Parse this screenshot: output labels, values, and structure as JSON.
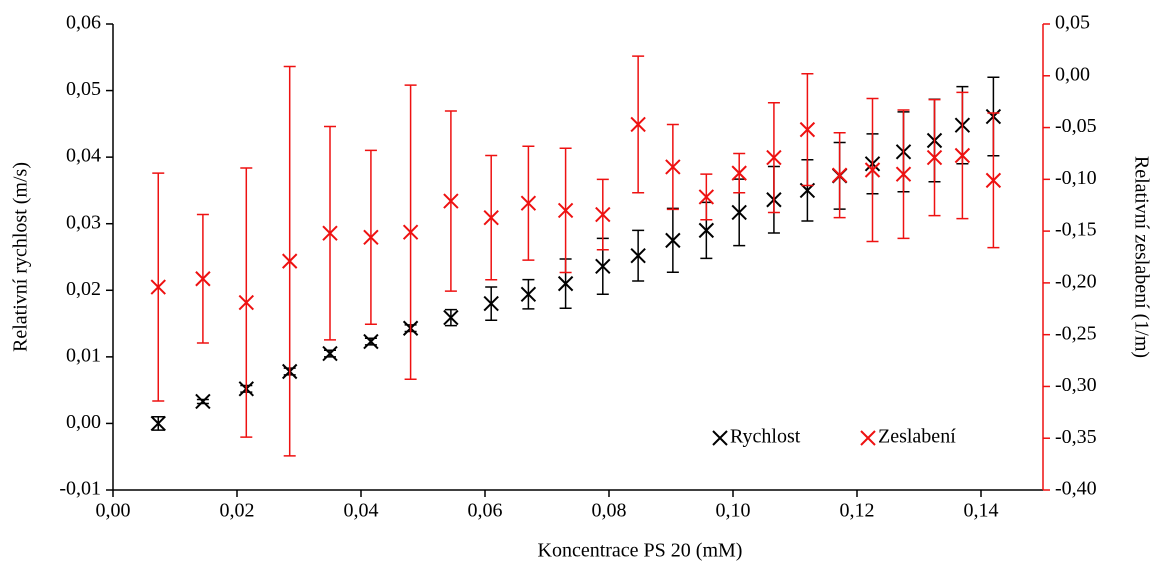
{
  "chart_data": {
    "type": "scatter",
    "x_label": "Koncentrace PS 20 (mM)",
    "y_label": "Relativní rychlost (m/s)",
    "y2_label": "Relativní zeslabení (1/m)",
    "x": [
      0.0073,
      0.0145,
      0.0215,
      0.0285,
      0.035,
      0.0416,
      0.048,
      0.0545,
      0.061,
      0.067,
      0.073,
      0.079,
      0.0847,
      0.0903,
      0.0957,
      0.101,
      0.1066,
      0.112,
      0.1172,
      0.1225,
      0.1275,
      0.1325,
      0.137,
      0.142
    ],
    "series": [
      {
        "name": "Rychlost",
        "color": "#000000",
        "axis": "y",
        "values": [
          0.0,
          0.0033,
          0.0052,
          0.0078,
          0.0105,
          0.0123,
          0.0143,
          0.0159,
          0.018,
          0.0194,
          0.021,
          0.0236,
          0.0252,
          0.0275,
          0.029,
          0.0317,
          0.0336,
          0.035,
          0.0372,
          0.039,
          0.0408,
          0.0425,
          0.0448,
          0.0461
        ],
        "errors": [
          0.001,
          0.0003,
          0.0005,
          0.0005,
          0.0005,
          0.0005,
          0.0005,
          0.0012,
          0.0025,
          0.0022,
          0.0037,
          0.0042,
          0.0038,
          0.0048,
          0.0042,
          0.005,
          0.005,
          0.0046,
          0.005,
          0.0045,
          0.006,
          0.0062,
          0.0058,
          0.0059
        ]
      },
      {
        "name": "Zeslabení",
        "color": "#ee1111",
        "axis": "y2",
        "values": [
          -0.204,
          -0.196,
          -0.219,
          -0.179,
          -0.152,
          -0.156,
          -0.151,
          -0.121,
          -0.137,
          -0.123,
          -0.13,
          -0.134,
          -0.047,
          -0.088,
          -0.117,
          -0.094,
          -0.079,
          -0.052,
          -0.096,
          -0.091,
          -0.095,
          -0.079,
          -0.077,
          -0.101
        ],
        "errors": [
          0.11,
          0.062,
          0.13,
          0.188,
          0.103,
          0.084,
          0.142,
          0.087,
          0.06,
          0.055,
          0.06,
          0.034,
          0.066,
          0.041,
          0.022,
          0.019,
          0.053,
          0.054,
          0.041,
          0.069,
          0.062,
          0.056,
          0.061,
          0.065
        ]
      }
    ],
    "xlim": [
      0,
      0.15
    ],
    "xticks": [
      {
        "value": 0,
        "label": "0,00"
      },
      {
        "value": 0.02,
        "label": "0,02"
      },
      {
        "value": 0.04,
        "label": "0,04"
      },
      {
        "value": 0.06,
        "label": "0,06"
      },
      {
        "value": 0.08,
        "label": "0,08"
      },
      {
        "value": 0.1,
        "label": "0,10"
      },
      {
        "value": 0.12,
        "label": "0,12"
      },
      {
        "value": 0.14,
        "label": "0,14"
      }
    ],
    "ylim": [
      -0.01,
      0.06
    ],
    "yticks": [
      {
        "value": -0.01,
        "label": "-0,01"
      },
      {
        "value": 0,
        "label": "0,00"
      },
      {
        "value": 0.01,
        "label": "0,01"
      },
      {
        "value": 0.02,
        "label": "0,02"
      },
      {
        "value": 0.03,
        "label": "0,03"
      },
      {
        "value": 0.04,
        "label": "0,04"
      },
      {
        "value": 0.05,
        "label": "0,05"
      },
      {
        "value": 0.06,
        "label": "0,06"
      }
    ],
    "y2lim": [
      -0.4,
      0.05
    ],
    "y2ticks": [
      {
        "value": 0.05,
        "label": "0,05"
      },
      {
        "value": 0,
        "label": "0,00"
      },
      {
        "value": -0.05,
        "label": "-0,05"
      },
      {
        "value": -0.1,
        "label": "-0,10"
      },
      {
        "value": -0.15,
        "label": "-0,15"
      },
      {
        "value": -0.2,
        "label": "-0,20"
      },
      {
        "value": -0.25,
        "label": "-0,25"
      },
      {
        "value": -0.3,
        "label": "-0,30"
      },
      {
        "value": -0.35,
        "label": "-0,35"
      },
      {
        "value": -0.4,
        "label": "-0,40"
      }
    ],
    "legend": "lower right"
  }
}
